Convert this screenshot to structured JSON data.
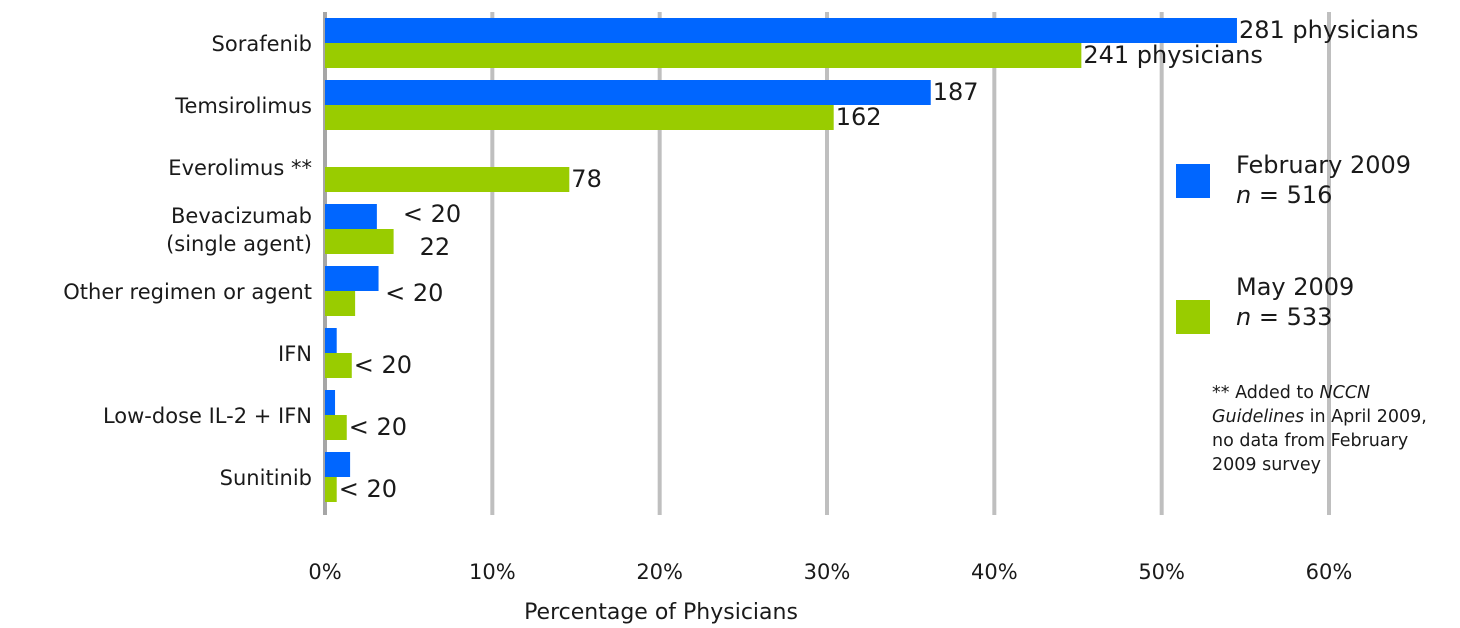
{
  "chart_data": {
    "type": "bar",
    "orientation": "horizontal",
    "categories": [
      "Sorafenib",
      "Temsirolimus",
      "Everolimus **",
      "Bevacizumab\n(single agent)",
      "Other regimen or agent",
      "IFN",
      "Low-dose IL-2 + IFN",
      "Sunitinib"
    ],
    "series": [
      {
        "name": "February 2009",
        "n_label": "n = 516",
        "color": "#0066ff",
        "values": [
          54.5,
          36.2,
          null,
          3.1,
          3.2,
          0.7,
          0.6,
          1.5
        ],
        "labels": [
          "281 physicians",
          "187",
          "",
          "< 20",
          "",
          "",
          "",
          ""
        ]
      },
      {
        "name": "May 2009",
        "n_label": "n = 533",
        "color": "#99cc00",
        "values": [
          45.2,
          30.4,
          14.6,
          4.1,
          1.8,
          1.6,
          1.3,
          0.7
        ],
        "labels": [
          "241 physicians",
          "162",
          "78",
          "22",
          "< 20",
          "< 20",
          "< 20",
          "< 20"
        ]
      }
    ],
    "xlim": [
      0,
      60
    ],
    "xticks": [
      "0%",
      "10%",
      "20%",
      "30%",
      "40%",
      "50%",
      "60%"
    ],
    "xlabel": "Percentage of Physicians",
    "grid": true,
    "legend_position": "right"
  },
  "legend": {
    "feb": {
      "title": "February 2009",
      "n_prefix": "n",
      "n_rest": " = 516"
    },
    "may": {
      "title": "May 2009",
      "n_prefix": "n",
      "n_rest": " = 533"
    }
  },
  "footnote": {
    "part1": "** Added to ",
    "italic": "NCCN Guidelines",
    "part2": " in April 2009, no data from February 2009 survey"
  },
  "colors": {
    "grid": "#bfbfbf",
    "axis": "#a6a6a6"
  }
}
